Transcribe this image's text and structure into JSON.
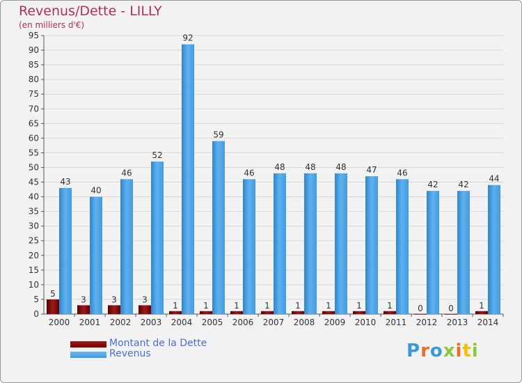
{
  "header": {
    "title": "Revenus/Dette - LILLY",
    "subtitle": "(en milliers d'€)"
  },
  "logo": {
    "text": "Proxiti",
    "colors": [
      "#3a9ad9",
      "#e8702a",
      "#3a9ad9",
      "#8dc63f",
      "#e8702a",
      "#f2c200",
      "#8dc63f"
    ]
  },
  "colors": {
    "dette": "#7a0000",
    "revenus": "#3f9be0",
    "axis": "#555555",
    "grid": "#d6d6d6",
    "text": "#333333"
  },
  "chart_data": {
    "type": "bar",
    "title": "Revenus/Dette - LILLY",
    "subtitle": "(en milliers d'€)",
    "xlabel": "",
    "ylabel": "",
    "categories": [
      "2000",
      "2001",
      "2002",
      "2003",
      "2004",
      "2005",
      "2006",
      "2007",
      "2008",
      "2009",
      "2010",
      "2011",
      "2012",
      "2013",
      "2014"
    ],
    "series": [
      {
        "name": "Montant de la Dette",
        "values": [
          5,
          3,
          3,
          3,
          1,
          1,
          1,
          1,
          1,
          1,
          1,
          1,
          0,
          0,
          1
        ]
      },
      {
        "name": "Revenus",
        "values": [
          43,
          40,
          46,
          52,
          92,
          59,
          46,
          48,
          48,
          48,
          47,
          46,
          42,
          42,
          44
        ]
      }
    ],
    "ylim": [
      0,
      95
    ],
    "yticks": [
      0,
      5,
      10,
      15,
      20,
      25,
      30,
      35,
      40,
      45,
      50,
      55,
      60,
      65,
      70,
      75,
      80,
      85,
      90,
      95
    ],
    "grid": true,
    "legend_position": "bottom-left"
  }
}
